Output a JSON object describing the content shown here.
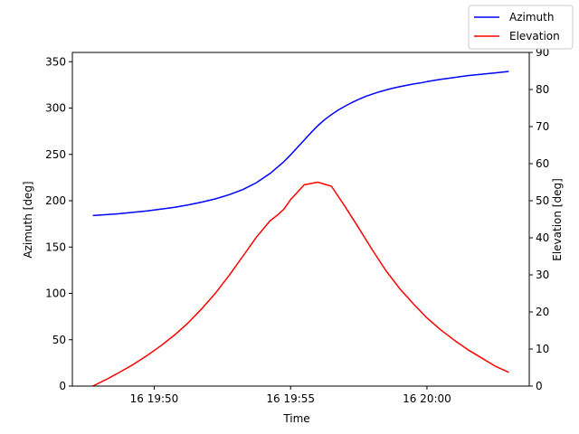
{
  "chart_data": {
    "type": "line",
    "xlabel": "Time",
    "ylabel_left": "Azimuth [deg]",
    "ylabel_right": "Elevation [deg]",
    "x_ticks": [
      {
        "label": "16 19:50",
        "minutes": 50
      },
      {
        "label": "16 19:55",
        "minutes": 55
      },
      {
        "label": "16 20:00",
        "minutes": 60
      }
    ],
    "xlim_minutes": [
      47.0,
      63.75
    ],
    "left_axis": {
      "ylim": [
        0,
        360
      ],
      "ticks": [
        0,
        50,
        100,
        150,
        200,
        250,
        300,
        350
      ]
    },
    "right_axis": {
      "ylim": [
        0,
        90
      ],
      "ticks": [
        0,
        10,
        20,
        30,
        40,
        50,
        60,
        70,
        80,
        90
      ]
    },
    "legend": {
      "placement": "top-right"
    },
    "series": [
      {
        "name": "Azimuth",
        "axis": "left",
        "color": "#0000ff",
        "x_minutes": [
          47.75,
          48.25,
          48.75,
          49.25,
          49.75,
          50.25,
          50.75,
          51.25,
          51.75,
          52.25,
          52.75,
          53.25,
          53.75,
          54.25,
          54.75,
          55.0,
          55.25,
          55.5,
          55.75,
          56.0,
          56.25,
          56.5,
          56.75,
          57.0,
          57.25,
          57.5,
          57.75,
          58.0,
          58.25,
          58.5,
          58.75,
          59.0,
          59.25,
          59.5,
          59.75,
          60.0,
          60.5,
          61.0,
          61.5,
          62.0,
          62.5,
          63.0
        ],
        "values": [
          184,
          185,
          186,
          187.5,
          189,
          191,
          193,
          195.5,
          198.5,
          202,
          206.5,
          212,
          219.5,
          229.5,
          242,
          249.5,
          257.5,
          265.5,
          273.5,
          281,
          287.5,
          293,
          298,
          302,
          306,
          309.5,
          312.5,
          315,
          317.5,
          319.5,
          321.5,
          323,
          324.5,
          326,
          327,
          328.5,
          331,
          333,
          335,
          336.5,
          338,
          339.5
        ]
      },
      {
        "name": "Elevation",
        "axis": "right",
        "color": "#ff0000",
        "x_minutes": [
          47.75,
          48.25,
          48.75,
          49.25,
          49.75,
          50.25,
          50.75,
          51.25,
          51.75,
          52.25,
          52.75,
          53.25,
          53.75,
          54.25,
          54.5,
          54.75,
          55.0,
          55.5,
          56.0,
          56.5,
          57.0,
          57.5,
          58.0,
          58.5,
          59.0,
          59.5,
          60.0,
          60.5,
          61.0,
          61.5,
          62.0,
          62.5,
          63.0
        ],
        "values": [
          0,
          1.8,
          3.8,
          5.9,
          8.3,
          10.9,
          13.8,
          17.1,
          20.9,
          25.1,
          29.9,
          35.0,
          40.2,
          44.6,
          46.0,
          47.7,
          50.3,
          54.3,
          55.0,
          53.9,
          48.4,
          42.6,
          36.7,
          31.1,
          26.3,
          22.2,
          18.4,
          15.2,
          12.4,
          9.8,
          7.6,
          5.4,
          3.7
        ]
      }
    ]
  }
}
